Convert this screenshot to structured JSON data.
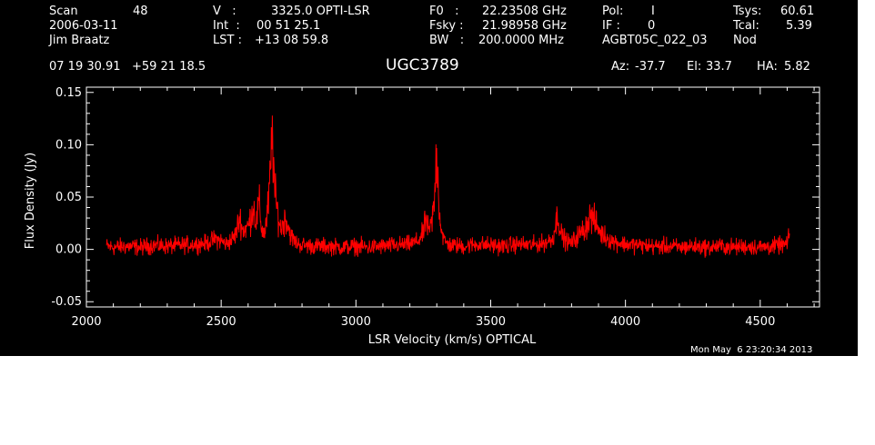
{
  "header": {
    "scan_label": "Scan",
    "scan_value": "48",
    "date": "2006-03-11",
    "observer": "Jim Braatz",
    "v_label": "V   :",
    "v_value": "3325.0 OPTI-LSR",
    "int_label": "Int  :",
    "int_value": "00 51 25.1",
    "lst_label": "LST :",
    "lst_value": "+13 08 59.8",
    "f0_label": "F0   :",
    "f0_value": "22.23508 GHz",
    "fsky_label": "Fsky :",
    "fsky_value": "21.98958 GHz",
    "bw_label": "BW   :",
    "bw_value": "200.0000 MHz",
    "pol_label": "Pol:",
    "pol_value": "I",
    "if_label": "IF :",
    "if_value": "0",
    "project": "AGBT05C_022_03",
    "tsys_label": "Tsys:",
    "tsys_value": "60.61",
    "tcal_label": "Tcal:",
    "tcal_value": "5.39",
    "mode": "Nod",
    "coords": "07 19 30.91   +59 21 18.5",
    "source": "UGC3789",
    "az_label": "Az:",
    "az_value": "-37.7",
    "el_label": "El:",
    "el_value": "33.7",
    "ha_label": "HA:",
    "ha_value": "5.82",
    "timestamp": "Mon May  6 23:20:34 2013"
  },
  "colors": {
    "background": "#000000",
    "axes": "#ffffff",
    "trace": "#ff0000"
  },
  "chart_data": {
    "type": "line",
    "title": "",
    "xlabel": "LSR Velocity (km/s) OPTICAL",
    "ylabel": "Flux Density (Jy)",
    "xlim": [
      2000,
      4720
    ],
    "ylim": [
      -0.055,
      0.155
    ],
    "xticks": [
      2000,
      2500,
      3000,
      3500,
      4000,
      4500
    ],
    "xtick_labels": [
      "2000",
      "2500",
      "3000",
      "3500",
      "4000",
      "4500"
    ],
    "yticks": [
      -0.05,
      0.0,
      0.05,
      0.1,
      0.15
    ],
    "ytick_labels": [
      "-0.05",
      "0.00",
      "0.05",
      "0.10",
      "0.15"
    ],
    "series": [
      {
        "x": [
          2075,
          2100,
          2150,
          2200,
          2250,
          2300,
          2350,
          2400,
          2450,
          2480,
          2500,
          2520,
          2550,
          2570,
          2580,
          2600,
          2620,
          2630,
          2640,
          2650,
          2660,
          2670,
          2680,
          2690,
          2700,
          2710,
          2720,
          2740,
          2760,
          2780,
          2800,
          2850,
          2900,
          2950,
          3000,
          3050,
          3100,
          3150,
          3200,
          3230,
          3250,
          3260,
          3270,
          3280,
          3290,
          3300,
          3310,
          3320,
          3330,
          3350,
          3400,
          3450,
          3500,
          3550,
          3600,
          3650,
          3700,
          3730,
          3750,
          3760,
          3780,
          3800,
          3820,
          3850,
          3870,
          3890,
          3910,
          3950,
          4000,
          4050,
          4100,
          4150,
          4200,
          4250,
          4300,
          4350,
          4400,
          4450,
          4500,
          4550,
          4600,
          4610
        ],
        "y": [
          0.003,
          0.002,
          0.003,
          0.002,
          0.004,
          0.003,
          0.004,
          0.005,
          0.006,
          0.01,
          0.008,
          0.005,
          0.012,
          0.03,
          0.018,
          0.022,
          0.04,
          0.025,
          0.045,
          0.02,
          0.015,
          0.03,
          0.06,
          0.11,
          0.05,
          0.035,
          0.02,
          0.03,
          0.012,
          0.006,
          0.004,
          0.003,
          0.003,
          0.002,
          0.003,
          0.002,
          0.003,
          0.004,
          0.005,
          0.008,
          0.015,
          0.03,
          0.015,
          0.025,
          0.04,
          0.097,
          0.035,
          0.015,
          0.007,
          0.004,
          0.003,
          0.005,
          0.004,
          0.003,
          0.005,
          0.004,
          0.006,
          0.01,
          0.035,
          0.015,
          0.008,
          0.006,
          0.012,
          0.02,
          0.032,
          0.025,
          0.015,
          0.008,
          0.005,
          0.004,
          0.003,
          0.003,
          0.002,
          0.003,
          0.002,
          0.003,
          0.002,
          0.003,
          0.002,
          0.003,
          0.005,
          0.014
        ]
      }
    ],
    "grid": false,
    "legend": "none"
  }
}
